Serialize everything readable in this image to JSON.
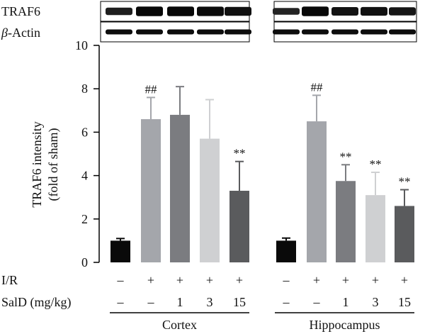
{
  "blot": {
    "rows": [
      "TRAF6",
      "-Actin"
    ],
    "row_prefix": [
      "",
      "β"
    ],
    "panels": [
      "Cortex",
      "Hippocampus"
    ],
    "band_intensity": {
      "TRAF6": {
        "Cortex": [
          0.55,
          0.95,
          0.95,
          0.9,
          0.8
        ],
        "Hippocampus": [
          0.45,
          0.95,
          0.75,
          0.78,
          0.7
        ]
      },
      "-Actin": {
        "Cortex": [
          0.85,
          0.85,
          0.85,
          0.85,
          0.85
        ],
        "Hippocampus": [
          0.85,
          0.85,
          0.85,
          0.85,
          0.85
        ]
      }
    }
  },
  "chart_data": {
    "type": "bar",
    "title": "",
    "ylabel_lines": [
      "TRAF6 intensity",
      "(fold of sham)"
    ],
    "ylim": [
      0,
      10
    ],
    "yticks": [
      "0",
      "2",
      "4",
      "6",
      "8",
      "10"
    ],
    "groups": [
      {
        "name": "Cortex",
        "values": [
          1.0,
          6.6,
          6.8,
          5.7,
          3.3
        ],
        "errors": [
          0.1,
          1.0,
          1.3,
          1.8,
          1.35
        ],
        "marks": [
          "",
          "##",
          "",
          "",
          "**"
        ],
        "colors": [
          "#0a0a0a",
          "#a4a6ab",
          "#7b7c80",
          "#cfd0d2",
          "#5a5b5d"
        ]
      },
      {
        "name": "Hippocampus",
        "values": [
          1.0,
          6.5,
          3.75,
          3.1,
          2.6
        ],
        "errors": [
          0.12,
          1.2,
          0.75,
          1.05,
          0.75
        ],
        "marks": [
          "",
          "##",
          "**",
          "**",
          "**"
        ],
        "colors": [
          "#0a0a0a",
          "#a4a6ab",
          "#7b7c80",
          "#cfd0d2",
          "#5a5b5d"
        ]
      }
    ],
    "condition_rows": [
      {
        "label": "I/R",
        "values": [
          "–",
          "+",
          "+",
          "+",
          "+"
        ]
      },
      {
        "label": "SalD (mg/kg)",
        "values": [
          "–",
          "–",
          "1",
          "3",
          "15"
        ]
      }
    ],
    "grid": false,
    "legend": "none"
  }
}
